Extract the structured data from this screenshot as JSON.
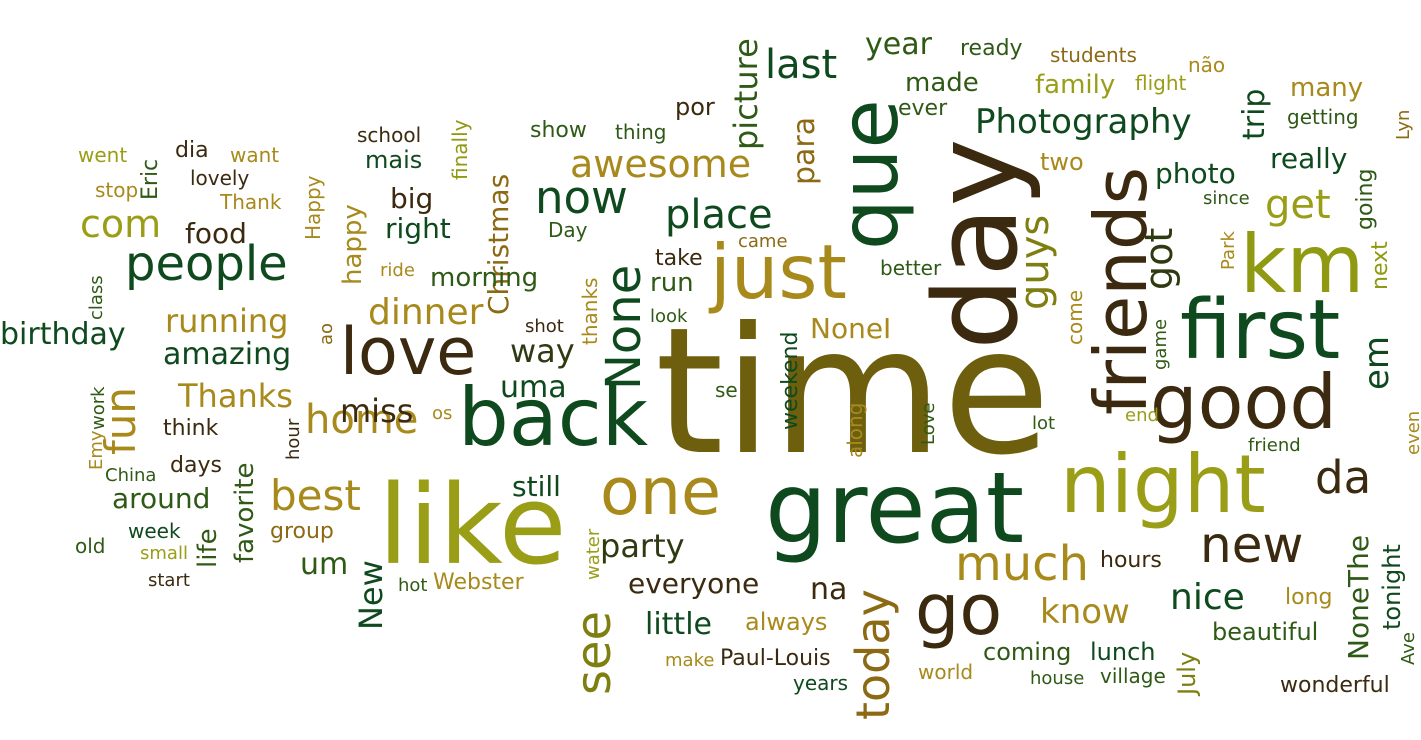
{
  "colors": {
    "dark_green": "#0f4a1e",
    "forest_green": "#2f5a16",
    "olive": "#7e7f10",
    "yellow_olive": "#9a9e17",
    "gold": "#a8891b",
    "ochre": "#8c6a14",
    "brown": "#4a3412",
    "dark_brown": "#3b2a0f"
  },
  "words": [
    {
      "text": "time",
      "color": "#6e5f0f"
    },
    {
      "text": "great",
      "color": "#0f4a1e"
    },
    {
      "text": "like",
      "color": "#9a9e17"
    },
    {
      "text": "back",
      "color": "#0f4a1e"
    },
    {
      "text": "day",
      "color": "#3b2a0f"
    },
    {
      "text": "night",
      "color": "#9a9e17"
    },
    {
      "text": "que",
      "color": "#0f4a1e"
    },
    {
      "text": "km",
      "color": "#8f9a12"
    },
    {
      "text": "just",
      "color": "#a8891b"
    },
    {
      "text": "first",
      "color": "#0f4a1e"
    },
    {
      "text": "good",
      "color": "#3b2a0f"
    },
    {
      "text": "friends",
      "color": "#3b2a0f"
    },
    {
      "text": "one",
      "color": "#a8891b"
    },
    {
      "text": "go",
      "color": "#3b2a0f"
    },
    {
      "text": "love",
      "color": "#3b2a0f"
    },
    {
      "text": "people",
      "color": "#0f4a1e"
    },
    {
      "text": "new",
      "color": "#3b2a0f"
    },
    {
      "text": "much",
      "color": "#a8891b"
    },
    {
      "text": "today",
      "color": "#8c6a14"
    },
    {
      "text": "see",
      "color": "#7e7f10"
    },
    {
      "text": "None",
      "color": "#0f4a1e"
    },
    {
      "text": "now",
      "color": "#0f4a1e"
    },
    {
      "text": "place",
      "color": "#0f4a1e"
    },
    {
      "text": "awesome",
      "color": "#a8891b"
    },
    {
      "text": "home",
      "color": "#a8891b"
    },
    {
      "text": "best",
      "color": "#a8891b"
    },
    {
      "text": "fun",
      "color": "#a8891b"
    },
    {
      "text": "da",
      "color": "#3b2a0f"
    },
    {
      "text": "com",
      "color": "#9a9e17"
    },
    {
      "text": "get",
      "color": "#9a9e17"
    },
    {
      "text": "guys",
      "color": "#7e7f10"
    },
    {
      "text": "got",
      "color": "#2f3a12"
    },
    {
      "text": "Photography",
      "color": "#0f4a1e"
    },
    {
      "text": "last",
      "color": "#0f4a1e"
    },
    {
      "text": "year",
      "color": "#2f5a16"
    },
    {
      "text": "made",
      "color": "#2f5a16"
    },
    {
      "text": "picture",
      "color": "#2f5a16"
    },
    {
      "text": "para",
      "color": "#8c6a14"
    },
    {
      "text": "trip",
      "color": "#0f4a1e"
    },
    {
      "text": "photo",
      "color": "#0f4a1e"
    },
    {
      "text": "really",
      "color": "#0f4a1e"
    },
    {
      "text": "em",
      "color": "#0f4a1e"
    },
    {
      "text": "nice",
      "color": "#0f4a1e"
    },
    {
      "text": "know",
      "color": "#a8891b"
    },
    {
      "text": "dinner",
      "color": "#a8891b"
    },
    {
      "text": "running",
      "color": "#a8891b"
    },
    {
      "text": "Thanks",
      "color": "#a8891b"
    },
    {
      "text": "miss",
      "color": "#3b2a0f"
    },
    {
      "text": "amazing",
      "color": "#0f4a1e"
    },
    {
      "text": "birthday",
      "color": "#0f4a1e"
    },
    {
      "text": "Christmas",
      "color": "#8c6a14"
    },
    {
      "text": "morning",
      "color": "#2f5a16"
    },
    {
      "text": "way",
      "color": "#2f3a12"
    },
    {
      "text": "uma",
      "color": "#0f4a1e"
    },
    {
      "text": "run",
      "color": "#2f5a16"
    },
    {
      "text": "party",
      "color": "#2f3a12"
    },
    {
      "text": "everyone",
      "color": "#3b2a0f"
    },
    {
      "text": "little",
      "color": "#0f4a1e"
    },
    {
      "text": "always",
      "color": "#a8891b"
    },
    {
      "text": "na",
      "color": "#3b2a0f"
    },
    {
      "text": "New",
      "color": "#0f4a1e"
    },
    {
      "text": "um",
      "color": "#2f5a16"
    },
    {
      "text": "around",
      "color": "#2f5a16"
    },
    {
      "text": "favorite",
      "color": "#2f5a16"
    },
    {
      "text": "life",
      "color": "#2f5a16"
    },
    {
      "text": "still",
      "color": "#0f4a1e"
    },
    {
      "text": "food",
      "color": "#3b2a0f"
    },
    {
      "text": "right",
      "color": "#0f4a1e"
    },
    {
      "text": "happy",
      "color": "#a8891b"
    },
    {
      "text": "big",
      "color": "#3b2a0f"
    },
    {
      "text": "mais",
      "color": "#0f4a1e"
    },
    {
      "text": "NoneI",
      "color": "#a8891b"
    },
    {
      "text": "NoneThe",
      "color": "#2f5a16"
    },
    {
      "text": "hours",
      "color": "#3b2a0f"
    },
    {
      "text": "tonight",
      "color": "#0f4a1e"
    },
    {
      "text": "beautiful",
      "color": "#2f5a16"
    },
    {
      "text": "coming",
      "color": "#2f5a16"
    },
    {
      "text": "lunch",
      "color": "#0f4a1e"
    },
    {
      "text": "July",
      "color": "#7e7f10"
    },
    {
      "text": "long",
      "color": "#a8891b"
    },
    {
      "text": "going",
      "color": "#2f5a16"
    },
    {
      "text": "next",
      "color": "#8f9a12"
    },
    {
      "text": "family",
      "color": "#9a9e17"
    },
    {
      "text": "many",
      "color": "#a8891b"
    },
    {
      "text": "two",
      "color": "#a8891b"
    },
    {
      "text": "ready",
      "color": "#2f5a16"
    },
    {
      "text": "students",
      "color": "#8c6a14"
    },
    {
      "text": "não",
      "color": "#a8891b"
    },
    {
      "text": "flight",
      "color": "#9a9e17"
    },
    {
      "text": "ever",
      "color": "#2f5a16"
    },
    {
      "text": "getting",
      "color": "#2f5a16"
    },
    {
      "text": "Lyn",
      "color": "#8c6a14"
    },
    {
      "text": "por",
      "color": "#3b2a0f"
    },
    {
      "text": "show",
      "color": "#2f5a16"
    },
    {
      "text": "thing",
      "color": "#2f5a16"
    },
    {
      "text": "school",
      "color": "#3b2a0f"
    },
    {
      "text": "finally",
      "color": "#8f9a12"
    },
    {
      "text": "dia",
      "color": "#3b2a0f"
    },
    {
      "text": "went",
      "color": "#9a9e17"
    },
    {
      "text": "want",
      "color": "#a8891b"
    },
    {
      "text": "lovely",
      "color": "#3b2a0f"
    },
    {
      "text": "Eric",
      "color": "#2f5a16"
    },
    {
      "text": "stop",
      "color": "#a8891b"
    },
    {
      "text": "Thank",
      "color": "#a8891b"
    },
    {
      "text": "Happy",
      "color": "#a8891b"
    },
    {
      "text": "class",
      "color": "#2f5a16"
    },
    {
      "text": "ride",
      "color": "#a8891b"
    },
    {
      "text": "thanks",
      "color": "#a8891b"
    },
    {
      "text": "Day",
      "color": "#2f5a16"
    },
    {
      "text": "take",
      "color": "#3b2a0f"
    },
    {
      "text": "came",
      "color": "#8c6a14"
    },
    {
      "text": "better",
      "color": "#2f5a16"
    },
    {
      "text": "since",
      "color": "#2f5a16"
    },
    {
      "text": "Park",
      "color": "#a8891b"
    },
    {
      "text": "game",
      "color": "#2f5a16"
    },
    {
      "text": "come",
      "color": "#a8891b"
    },
    {
      "text": "look",
      "color": "#2f5a16"
    },
    {
      "text": "shot",
      "color": "#3b2a0f"
    },
    {
      "text": "ao",
      "color": "#8c6a14"
    },
    {
      "text": "work",
      "color": "#2f5a16"
    },
    {
      "text": "Emy",
      "color": "#a8891b"
    },
    {
      "text": "think",
      "color": "#3b2a0f"
    },
    {
      "text": "os",
      "color": "#a8891b"
    },
    {
      "text": "se",
      "color": "#2f5a16"
    },
    {
      "text": "weekend",
      "color": "#0f4a1e"
    },
    {
      "text": "along",
      "color": "#a8891b"
    },
    {
      "text": "Love",
      "color": "#2f5a16"
    },
    {
      "text": "lot",
      "color": "#2f5a16"
    },
    {
      "text": "end",
      "color": "#9a9e17"
    },
    {
      "text": "friend",
      "color": "#2f5a16"
    },
    {
      "text": "even",
      "color": "#a8891b"
    },
    {
      "text": "hour",
      "color": "#3b2a0f"
    },
    {
      "text": "China",
      "color": "#2f5a16"
    },
    {
      "text": "days",
      "color": "#3b2a0f"
    },
    {
      "text": "group",
      "color": "#8c6a14"
    },
    {
      "text": "week",
      "color": "#0f4a1e"
    },
    {
      "text": "old",
      "color": "#2f5a16"
    },
    {
      "text": "small",
      "color": "#9a9e17"
    },
    {
      "text": "start",
      "color": "#3b2a0f"
    },
    {
      "text": "hot",
      "color": "#2f5a16"
    },
    {
      "text": "Webster",
      "color": "#a8891b"
    },
    {
      "text": "water",
      "color": "#9a9e17"
    },
    {
      "text": "make",
      "color": "#a8891b"
    },
    {
      "text": "Paul-Louis",
      "color": "#3b2a0f"
    },
    {
      "text": "years",
      "color": "#0f4a1e"
    },
    {
      "text": "world",
      "color": "#a8891b"
    },
    {
      "text": "house",
      "color": "#2f5a16"
    },
    {
      "text": "village",
      "color": "#2f5a16"
    },
    {
      "text": "wonderful",
      "color": "#3b2a0f"
    },
    {
      "text": "Ave",
      "color": "#2f5a16"
    }
  ]
}
